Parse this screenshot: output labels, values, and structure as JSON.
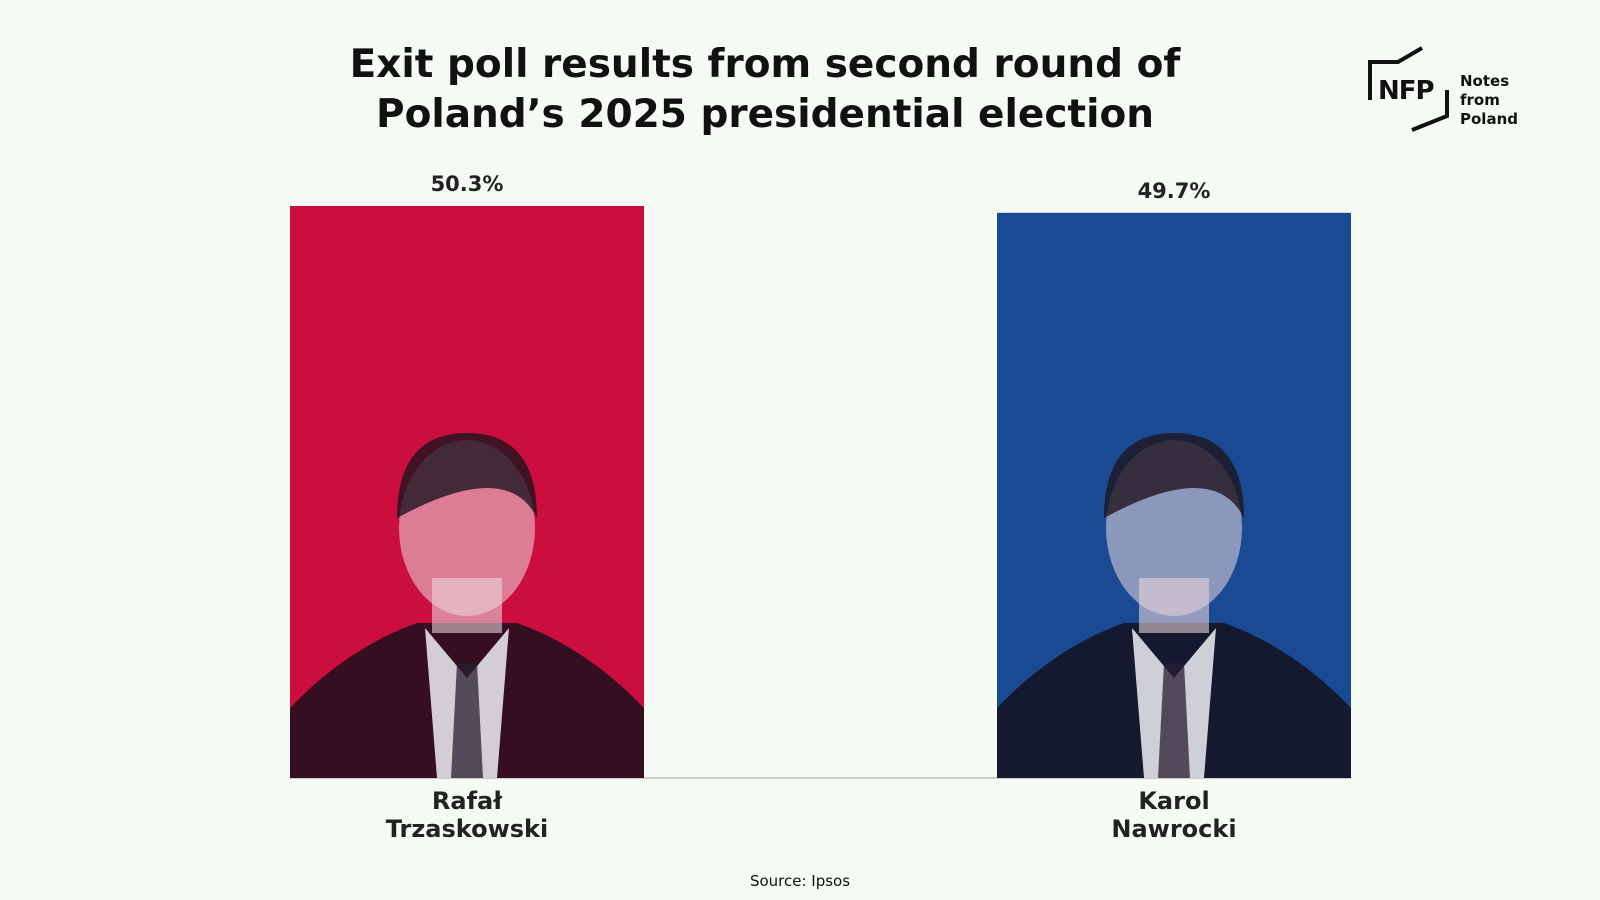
{
  "chart_data": {
    "type": "bar",
    "title": "Exit poll results from second round of Poland’s 2025 presidential election",
    "categories": [
      "Rafał Trzaskowski",
      "Karol Nawrocki"
    ],
    "values": [
      50.3,
      49.7
    ],
    "value_labels": [
      "50.3%",
      "49.7%"
    ],
    "colors": [
      "#cc0e3f",
      "#1a4a94"
    ],
    "source": "Source: Ipsos"
  },
  "logo": {
    "mark": "NFP",
    "name": "Notes from Poland"
  }
}
